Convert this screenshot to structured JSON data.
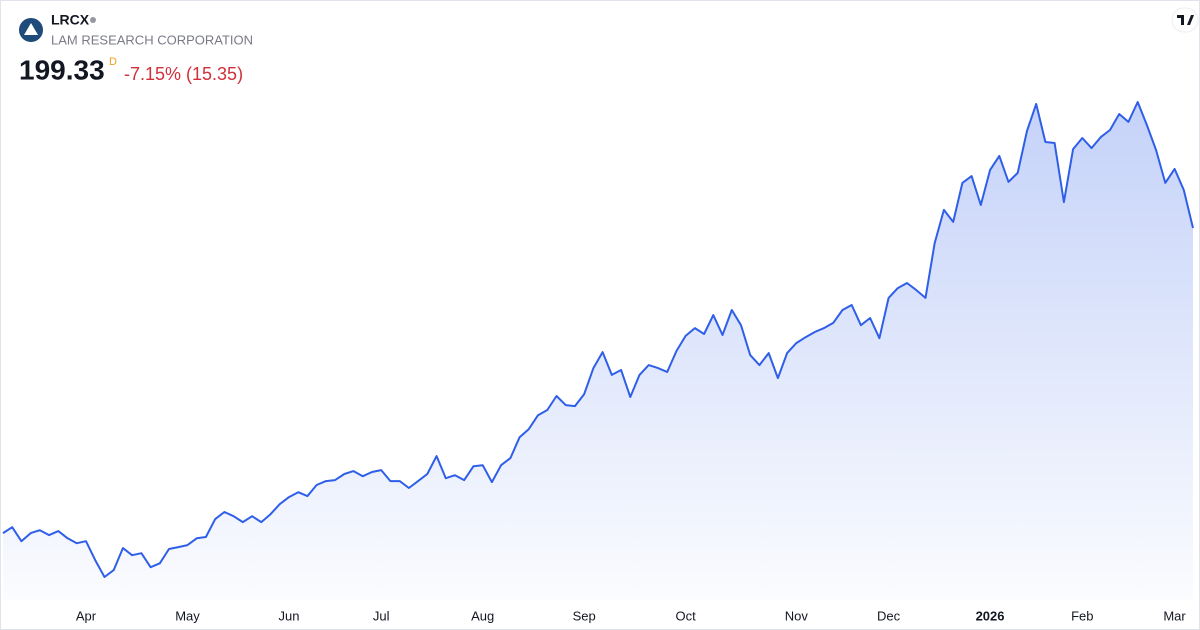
{
  "header": {
    "symbol": "LRCX",
    "name": "LAM RESEARCH CORPORATION",
    "price": "199.33",
    "session": "D",
    "change": "-7.15% (15.35)"
  },
  "chart_data": {
    "type": "area",
    "color": "#2f5fe8",
    "values": [
      74.9,
      77.3,
      71.6,
      74.9,
      76.1,
      74.1,
      75.7,
      72.8,
      70.8,
      71.6,
      63.9,
      57.0,
      59.8,
      68.8,
      65.9,
      66.7,
      61.0,
      62.6,
      68.4,
      69.2,
      70.0,
      72.8,
      73.3,
      80.6,
      83.5,
      81.8,
      79.4,
      81.8,
      79.4,
      82.6,
      86.7,
      89.6,
      91.6,
      90.0,
      94.5,
      96.1,
      96.5,
      99.0,
      100.2,
      98.1,
      99.8,
      100.6,
      96.1,
      96.1,
      93.3,
      96.1,
      99.0,
      106.3,
      97.3,
      98.5,
      96.5,
      102.2,
      102.6,
      95.7,
      102.6,
      105.5,
      114.0,
      117.3,
      123.0,
      125.1,
      130.8,
      127.1,
      126.7,
      131.6,
      142.2,
      148.7,
      139.4,
      141.4,
      130.4,
      139.4,
      143.4,
      142.2,
      140.6,
      149.1,
      155.3,
      158.5,
      156.1,
      163.8,
      155.7,
      165.9,
      159.7,
      147.5,
      143.4,
      148.3,
      138.1,
      148.3,
      152.4,
      154.8,
      156.9,
      158.5,
      160.6,
      165.9,
      167.9,
      159.7,
      162.6,
      154.4,
      170.8,
      174.8,
      176.9,
      174.0,
      170.8,
      193.2,
      206.7,
      201.8,
      217.7,
      220.5,
      208.7,
      223.0,
      228.7,
      218.1,
      221.8,
      238.9,
      249.9,
      234.4,
      234.0,
      209.9,
      231.5,
      236.0,
      231.9,
      236.4,
      239.3,
      245.8,
      242.6,
      250.7,
      241.3,
      231.1,
      217.7,
      223.4,
      214.8,
      199.33
    ],
    "xticks": [
      {
        "value": 9,
        "label": "Apr"
      },
      {
        "value": 20,
        "label": "May"
      },
      {
        "value": 31,
        "label": "Jun"
      },
      {
        "value": 41,
        "label": "Jul"
      },
      {
        "value": 52,
        "label": "Aug"
      },
      {
        "value": 63,
        "label": "Sep"
      },
      {
        "value": 74,
        "label": "Oct"
      },
      {
        "value": 86,
        "label": "Nov"
      },
      {
        "value": 96,
        "label": "Dec"
      },
      {
        "value": 107,
        "label": "2026"
      },
      {
        "value": 117,
        "label": "Feb"
      },
      {
        "value": 127,
        "label": "Mar"
      }
    ]
  }
}
